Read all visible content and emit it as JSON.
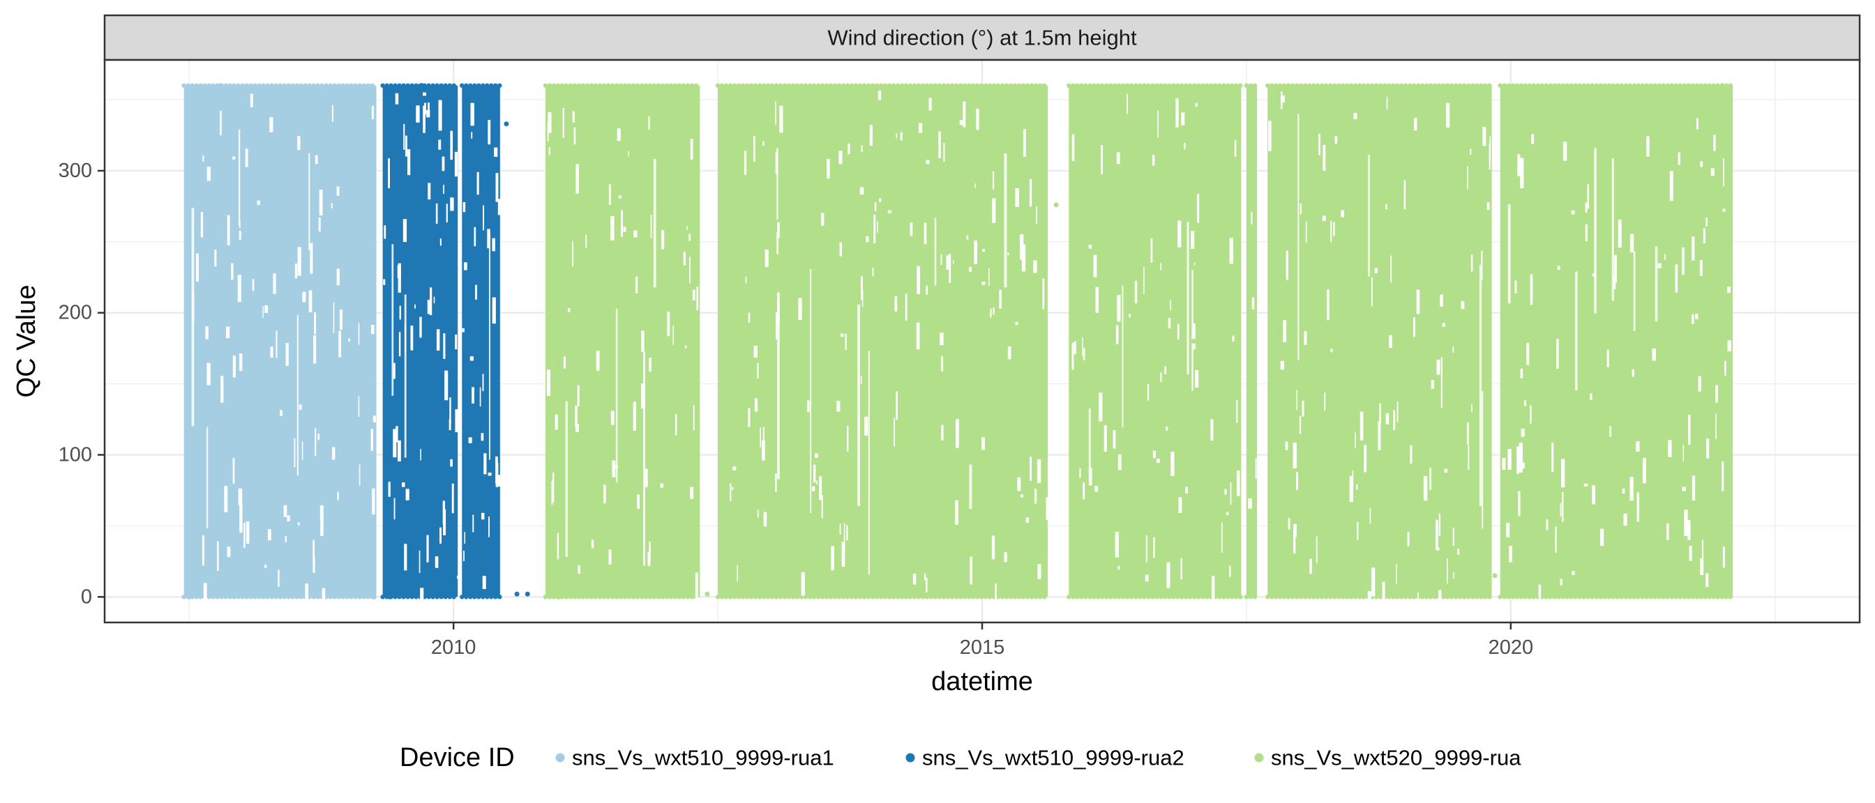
{
  "chart_data": {
    "type": "scatter",
    "panel_title": "Wind direction (°) at 1.5m height",
    "xlabel": "datetime",
    "ylabel": "QC Value",
    "x_ticks": [
      "2010",
      "2015",
      "2020"
    ],
    "x_tick_values": [
      2010,
      2015,
      2020
    ],
    "y_ticks": [
      "0",
      "100",
      "200",
      "300"
    ],
    "y_tick_values": [
      0,
      100,
      200,
      300
    ],
    "xlim": [
      2006.7,
      2023.3
    ],
    "ylim": [
      -18,
      378
    ],
    "grid": true,
    "legend": {
      "title": "Device ID",
      "position": "bottom"
    },
    "series": [
      {
        "name": "sns_Vs_wxt510_9999-rua1",
        "color": "#a6cee3",
        "segments": [
          [
            2007.45,
            2009.27
          ]
        ],
        "range": [
          0,
          360
        ],
        "density": 0.92,
        "points": [
          {
            "x": 2007.5,
            "y": 0
          },
          {
            "x": 2007.8,
            "y": 360
          },
          {
            "x": 2008.2,
            "y": 180
          },
          {
            "x": 2008.6,
            "y": 90
          },
          {
            "x": 2009.0,
            "y": 270
          },
          {
            "x": 2009.25,
            "y": 0
          }
        ]
      },
      {
        "name": "sns_Vs_wxt510_9999-rua2",
        "color": "#1f78b4",
        "segments": [
          [
            2009.33,
            2010.04
          ],
          [
            2010.08,
            2010.44
          ]
        ],
        "range": [
          0,
          360
        ],
        "density": 0.85,
        "points": [
          {
            "x": 2009.4,
            "y": 0
          },
          {
            "x": 2009.7,
            "y": 360
          },
          {
            "x": 2010.2,
            "y": 180
          },
          {
            "x": 2010.5,
            "y": 333
          },
          {
            "x": 2010.6,
            "y": 2
          },
          {
            "x": 2010.7,
            "y": 2
          }
        ]
      },
      {
        "name": "sns_Vs_wxt520_9999-rua",
        "color": "#b2df8a",
        "segments": [
          [
            2010.87,
            2012.33
          ],
          [
            2012.5,
            2015.62
          ],
          [
            2015.82,
            2017.45
          ],
          [
            2017.5,
            2017.6
          ],
          [
            2017.7,
            2019.82
          ],
          [
            2019.9,
            2022.1
          ]
        ],
        "range": [
          0,
          360
        ],
        "density": 0.93,
        "points": [
          {
            "x": 2011.0,
            "y": 0
          },
          {
            "x": 2012.4,
            "y": 2
          },
          {
            "x": 2015.7,
            "y": 276
          },
          {
            "x": 2017.0,
            "y": 180
          },
          {
            "x": 2019.85,
            "y": 15
          },
          {
            "x": 2022.0,
            "y": 360
          }
        ]
      }
    ]
  }
}
